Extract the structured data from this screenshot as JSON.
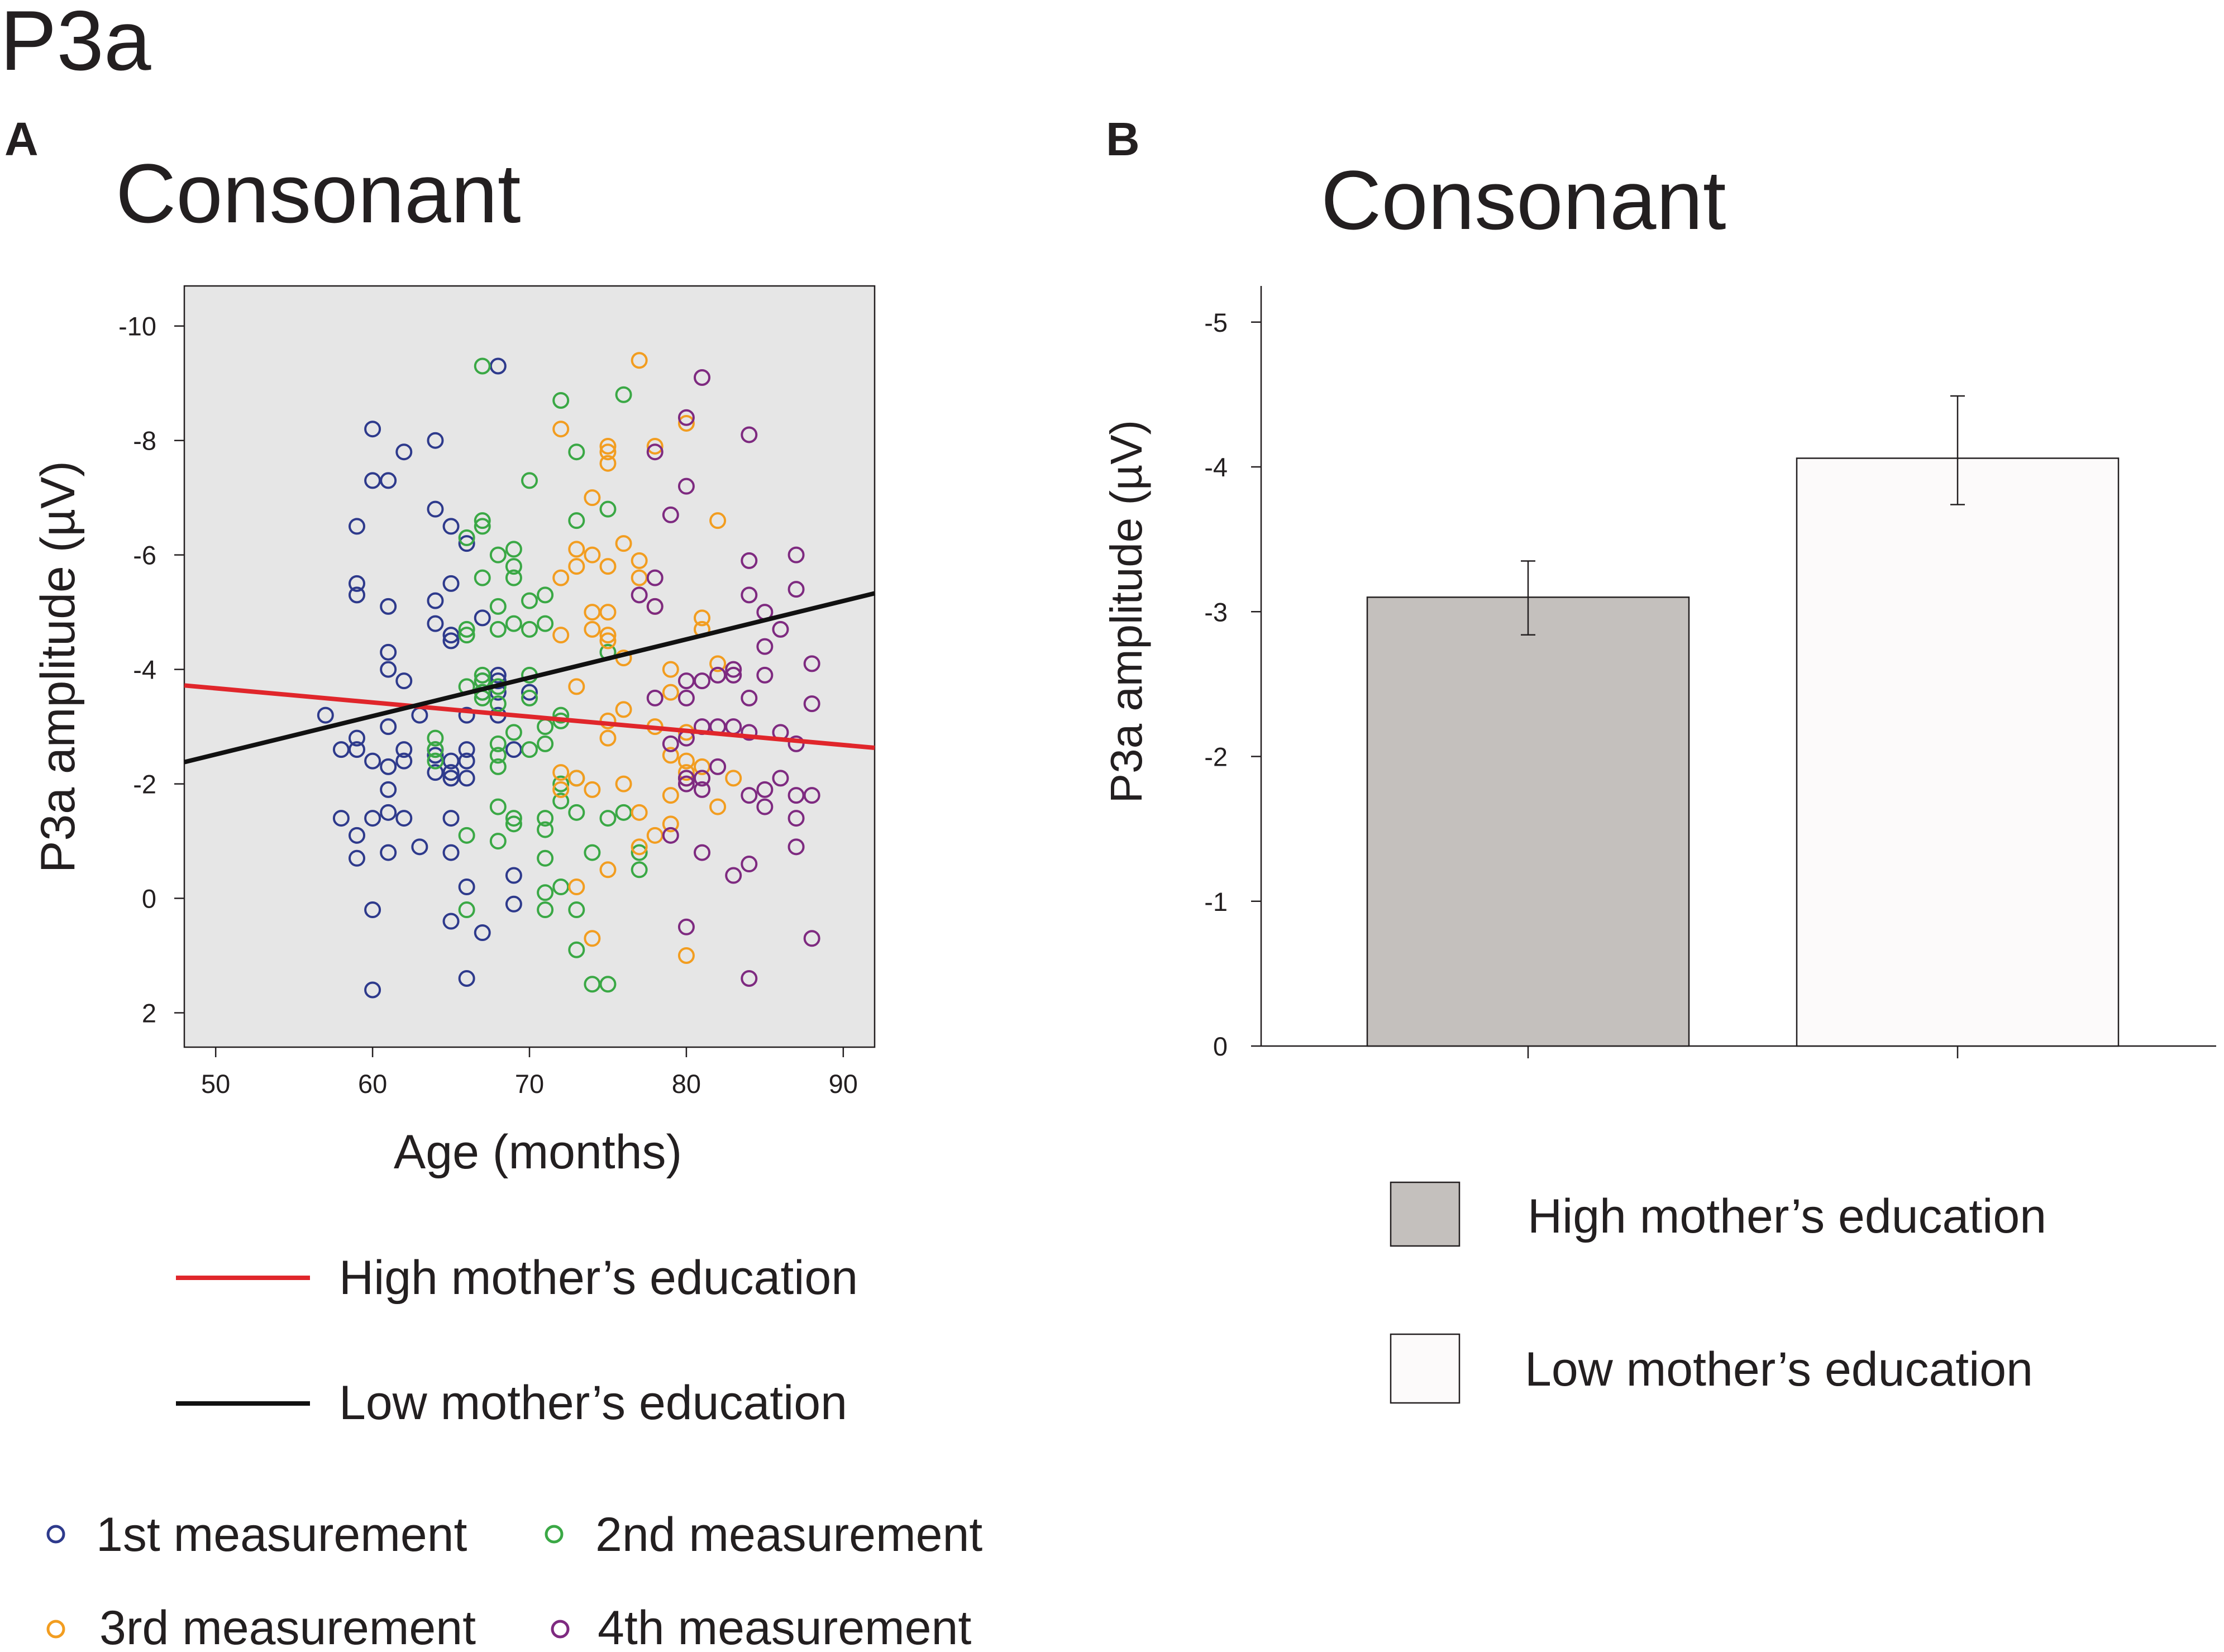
{
  "figure_title": "P3a",
  "colors": {
    "background": "#ffffff",
    "plot_bg": "#e6e6e6",
    "text": "#231f20",
    "high_line": "#e0262b",
    "low_line": "#111111",
    "m1": "#2e3a8c",
    "m2": "#3aa845",
    "m3": "#f29d20",
    "m4": "#7e2a80",
    "bar_high": "#c4c0bd",
    "bar_low": "#fcfafa"
  },
  "chart_data": [
    {
      "panel": "A",
      "type": "scatter",
      "title": "Consonant",
      "xlabel": "Age (months)",
      "ylabel": "P3a amplitude (µV)",
      "xlim": [
        48,
        92
      ],
      "ylim": [
        2.6,
        -10.7
      ],
      "y_inverted": true,
      "x_ticks": [
        "50",
        "60",
        "70",
        "80",
        "90"
      ],
      "y_ticks": [
        "-10",
        "-8",
        "-6",
        "-4",
        "-2",
        "0",
        "2"
      ],
      "series": [
        {
          "name": "1st measurement",
          "points": [
            [
              57,
              -3.2
            ],
            [
              58,
              -2.6
            ],
            [
              58,
              -1.4
            ],
            [
              59,
              -6.5
            ],
            [
              59,
              -5.5
            ],
            [
              59,
              -5.3
            ],
            [
              59,
              -2.8
            ],
            [
              59,
              -2.6
            ],
            [
              59,
              -1.1
            ],
            [
              59,
              -0.7
            ],
            [
              60,
              -8.2
            ],
            [
              60,
              -7.3
            ],
            [
              60,
              -2.4
            ],
            [
              60,
              -1.4
            ],
            [
              60,
              0.2
            ],
            [
              60,
              1.6
            ],
            [
              61,
              -7.3
            ],
            [
              61,
              -5.1
            ],
            [
              61,
              -4.3
            ],
            [
              61,
              -4.0
            ],
            [
              61,
              -3.0
            ],
            [
              61,
              -2.3
            ],
            [
              61,
              -1.9
            ],
            [
              61,
              -1.5
            ],
            [
              61,
              -0.8
            ],
            [
              62,
              -7.8
            ],
            [
              62,
              -3.8
            ],
            [
              62,
              -2.6
            ],
            [
              62,
              -2.4
            ],
            [
              62,
              -1.4
            ],
            [
              63,
              -3.2
            ],
            [
              63,
              -0.9
            ],
            [
              64,
              -8.0
            ],
            [
              64,
              -6.8
            ],
            [
              64,
              -5.2
            ],
            [
              64,
              -4.8
            ],
            [
              64,
              -2.6
            ],
            [
              64,
              -2.5
            ],
            [
              64,
              -2.2
            ],
            [
              65,
              -6.5
            ],
            [
              65,
              -5.5
            ],
            [
              65,
              -4.6
            ],
            [
              65,
              -4.5
            ],
            [
              65,
              -2.4
            ],
            [
              65,
              -2.2
            ],
            [
              65,
              -2.1
            ],
            [
              65,
              -1.4
            ],
            [
              65,
              -0.8
            ],
            [
              65,
              0.4
            ],
            [
              66,
              -6.2
            ],
            [
              66,
              -3.2
            ],
            [
              66,
              -2.6
            ],
            [
              66,
              -2.4
            ],
            [
              66,
              -2.1
            ],
            [
              66,
              -0.2
            ],
            [
              66,
              1.4
            ],
            [
              67,
              -4.9
            ],
            [
              67,
              -3.8
            ],
            [
              67,
              -3.6
            ],
            [
              67,
              0.6
            ],
            [
              68,
              -9.3
            ],
            [
              68,
              -3.9
            ],
            [
              68,
              -3.8
            ],
            [
              68,
              -3.6
            ],
            [
              68,
              -3.2
            ],
            [
              69,
              -2.6
            ],
            [
              69,
              -0.4
            ],
            [
              69,
              0.1
            ],
            [
              70,
              -3.6
            ]
          ]
        },
        {
          "name": "2nd measurement",
          "points": [
            [
              64,
              -2.8
            ],
            [
              64,
              -2.6
            ],
            [
              64,
              -2.4
            ],
            [
              66,
              -6.3
            ],
            [
              66,
              -4.7
            ],
            [
              66,
              -4.6
            ],
            [
              66,
              -3.7
            ],
            [
              66,
              -1.1
            ],
            [
              66,
              0.2
            ],
            [
              67,
              -9.3
            ],
            [
              67,
              -6.6
            ],
            [
              67,
              -6.5
            ],
            [
              67,
              -5.6
            ],
            [
              67,
              -3.9
            ],
            [
              67,
              -3.8
            ],
            [
              67,
              -3.6
            ],
            [
              67,
              -3.5
            ],
            [
              68,
              -6.0
            ],
            [
              68,
              -5.1
            ],
            [
              68,
              -4.7
            ],
            [
              68,
              -3.7
            ],
            [
              68,
              -3.4
            ],
            [
              68,
              -2.7
            ],
            [
              68,
              -2.5
            ],
            [
              68,
              -2.3
            ],
            [
              68,
              -1.6
            ],
            [
              68,
              -1.0
            ],
            [
              69,
              -6.1
            ],
            [
              69,
              -5.8
            ],
            [
              69,
              -5.6
            ],
            [
              69,
              -4.8
            ],
            [
              69,
              -2.9
            ],
            [
              69,
              -1.4
            ],
            [
              69,
              -1.3
            ],
            [
              70,
              -7.3
            ],
            [
              70,
              -5.2
            ],
            [
              70,
              -4.7
            ],
            [
              70,
              -3.9
            ],
            [
              70,
              -3.5
            ],
            [
              70,
              -2.6
            ],
            [
              71,
              -5.3
            ],
            [
              71,
              -4.8
            ],
            [
              71,
              -3.0
            ],
            [
              71,
              -2.7
            ],
            [
              71,
              -1.4
            ],
            [
              71,
              -1.2
            ],
            [
              71,
              -0.7
            ],
            [
              71,
              -0.1
            ],
            [
              71,
              0.2
            ],
            [
              72,
              -8.7
            ],
            [
              72,
              -3.2
            ],
            [
              72,
              -3.1
            ],
            [
              72,
              -2.0
            ],
            [
              72,
              -1.7
            ],
            [
              72,
              -0.2
            ],
            [
              73,
              -7.8
            ],
            [
              73,
              -6.6
            ],
            [
              73,
              -2.1
            ],
            [
              73,
              -1.5
            ],
            [
              73,
              0.2
            ],
            [
              73,
              0.9
            ],
            [
              74,
              -0.8
            ],
            [
              74,
              1.5
            ],
            [
              75,
              -6.8
            ],
            [
              75,
              -4.3
            ],
            [
              75,
              -1.4
            ],
            [
              75,
              1.5
            ],
            [
              76,
              -8.8
            ],
            [
              76,
              -1.5
            ],
            [
              77,
              -0.8
            ],
            [
              77,
              -0.5
            ]
          ]
        },
        {
          "name": "3rd measurement",
          "points": [
            [
              72,
              -8.2
            ],
            [
              72,
              -5.6
            ],
            [
              72,
              -4.6
            ],
            [
              72,
              -2.2
            ],
            [
              72,
              -1.9
            ],
            [
              73,
              -6.1
            ],
            [
              73,
              -5.8
            ],
            [
              73,
              -3.7
            ],
            [
              73,
              -2.1
            ],
            [
              73,
              -0.2
            ],
            [
              74,
              -7.0
            ],
            [
              74,
              -6.0
            ],
            [
              74,
              -5.0
            ],
            [
              74,
              -4.7
            ],
            [
              74,
              -1.9
            ],
            [
              74,
              0.7
            ],
            [
              75,
              -7.9
            ],
            [
              75,
              -7.8
            ],
            [
              75,
              -7.6
            ],
            [
              75,
              -5.8
            ],
            [
              75,
              -5.0
            ],
            [
              75,
              -4.6
            ],
            [
              75,
              -4.5
            ],
            [
              75,
              -3.1
            ],
            [
              75,
              -2.8
            ],
            [
              75,
              -0.5
            ],
            [
              76,
              -6.2
            ],
            [
              76,
              -4.2
            ],
            [
              76,
              -3.3
            ],
            [
              76,
              -2.0
            ],
            [
              77,
              -9.4
            ],
            [
              77,
              -5.9
            ],
            [
              77,
              -5.6
            ],
            [
              77,
              -1.5
            ],
            [
              77,
              -0.9
            ],
            [
              78,
              -7.9
            ],
            [
              78,
              -5.1
            ],
            [
              78,
              -3.0
            ],
            [
              78,
              -1.1
            ],
            [
              79,
              -4.0
            ],
            [
              79,
              -3.6
            ],
            [
              79,
              -2.5
            ],
            [
              79,
              -1.8
            ],
            [
              79,
              -1.3
            ],
            [
              80,
              -8.3
            ],
            [
              80,
              -2.9
            ],
            [
              80,
              -2.4
            ],
            [
              80,
              -2.2
            ],
            [
              80,
              -2.1
            ],
            [
              80,
              1.0
            ],
            [
              81,
              -4.9
            ],
            [
              81,
              -4.7
            ],
            [
              81,
              -2.3
            ],
            [
              82,
              -6.6
            ],
            [
              82,
              -4.1
            ],
            [
              82,
              -1.6
            ],
            [
              83,
              -2.1
            ]
          ]
        },
        {
          "name": "4th measurement",
          "points": [
            [
              77,
              -5.3
            ],
            [
              78,
              -7.8
            ],
            [
              78,
              -5.6
            ],
            [
              78,
              -5.1
            ],
            [
              78,
              -3.5
            ],
            [
              79,
              -6.7
            ],
            [
              79,
              -2.7
            ],
            [
              79,
              -1.1
            ],
            [
              80,
              -8.4
            ],
            [
              80,
              -7.2
            ],
            [
              80,
              -3.8
            ],
            [
              80,
              -3.5
            ],
            [
              80,
              -2.8
            ],
            [
              80,
              -2.1
            ],
            [
              80,
              -2.0
            ],
            [
              80,
              0.5
            ],
            [
              81,
              -9.1
            ],
            [
              81,
              -3.8
            ],
            [
              81,
              -3.0
            ],
            [
              81,
              -2.1
            ],
            [
              81,
              -1.9
            ],
            [
              81,
              -0.8
            ],
            [
              82,
              -3.9
            ],
            [
              82,
              -3.0
            ],
            [
              82,
              -2.3
            ],
            [
              83,
              -4.0
            ],
            [
              83,
              -3.9
            ],
            [
              83,
              -3.0
            ],
            [
              83,
              -0.4
            ],
            [
              84,
              -8.1
            ],
            [
              84,
              -5.9
            ],
            [
              84,
              -5.3
            ],
            [
              84,
              -3.5
            ],
            [
              84,
              -2.9
            ],
            [
              84,
              -1.8
            ],
            [
              84,
              -0.6
            ],
            [
              84,
              1.4
            ],
            [
              85,
              -5.0
            ],
            [
              85,
              -4.4
            ],
            [
              85,
              -3.9
            ],
            [
              85,
              -1.9
            ],
            [
              85,
              -1.6
            ],
            [
              86,
              -4.7
            ],
            [
              86,
              -2.9
            ],
            [
              86,
              -2.1
            ],
            [
              87,
              -6.0
            ],
            [
              87,
              -5.4
            ],
            [
              87,
              -2.7
            ],
            [
              87,
              -1.8
            ],
            [
              87,
              -1.4
            ],
            [
              87,
              -0.9
            ],
            [
              88,
              -4.1
            ],
            [
              88,
              -3.4
            ],
            [
              88,
              -1.8
            ],
            [
              88,
              0.7
            ]
          ]
        }
      ],
      "regression_lines": [
        {
          "name": "High mother’s education",
          "x": [
            48,
            92
          ],
          "y": [
            -3.72,
            -2.63
          ]
        },
        {
          "name": "Low mother’s education",
          "x": [
            48,
            92
          ],
          "y": [
            -2.38,
            -5.33
          ]
        }
      ]
    },
    {
      "panel": "B",
      "type": "bar",
      "title": "Consonant",
      "ylabel": "P3a amplitude (µV)",
      "ylim": [
        0,
        -5.25
      ],
      "y_inverted": true,
      "y_ticks": [
        "-5",
        "-4",
        "-3",
        "-2",
        "-1",
        "0"
      ],
      "categories": [
        "High mother’s education",
        "Low mother’s education"
      ],
      "values": [
        -3.1,
        -4.06
      ],
      "error_low": [
        -2.84,
        -3.74
      ],
      "error_high": [
        -3.35,
        -4.49
      ]
    }
  ],
  "legend_a": {
    "lines": [
      "High mother’s education",
      "Low mother’s education"
    ],
    "markers": [
      "1st measurement",
      "2nd measurement",
      "3rd measurement",
      "4th measurement"
    ]
  },
  "legend_b": {
    "items": [
      "High mother’s education",
      "Low mother’s education"
    ]
  }
}
